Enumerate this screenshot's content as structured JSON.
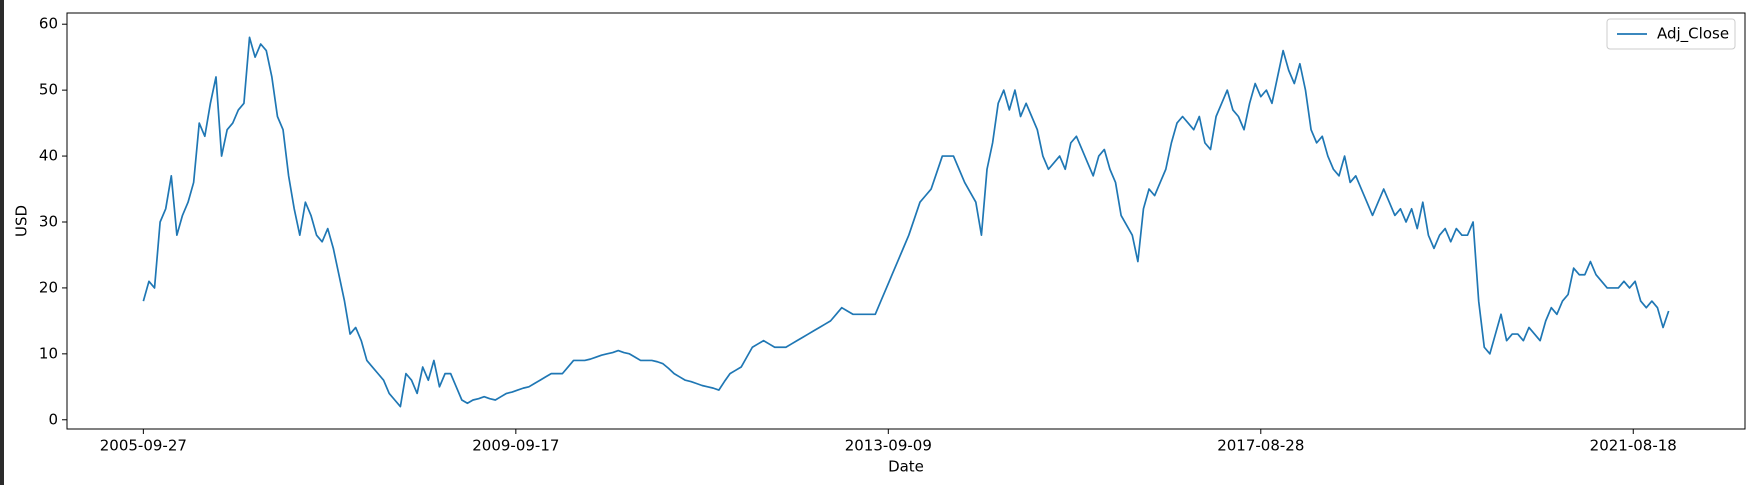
{
  "chart_data": {
    "type": "line",
    "xlabel": "Date",
    "ylabel": "USD",
    "legend": "upper right",
    "xlim": [
      -205,
      4300
    ],
    "ylim": [
      -1.4,
      61.7
    ],
    "xticks": [
      {
        "value": 0,
        "label": "2005-09-27"
      },
      {
        "value": 1000,
        "label": "2009-09-17"
      },
      {
        "value": 2000,
        "label": "2013-09-09"
      },
      {
        "value": 3000,
        "label": "2017-08-28"
      },
      {
        "value": 4000,
        "label": "2021-08-18"
      }
    ],
    "yticks": [
      0,
      10,
      20,
      30,
      40,
      50,
      60
    ],
    "x": [
      0,
      15,
      30,
      45,
      60,
      75,
      90,
      105,
      120,
      135,
      150,
      165,
      180,
      195,
      210,
      225,
      240,
      255,
      270,
      285,
      300,
      315,
      330,
      345,
      360,
      375,
      390,
      405,
      420,
      435,
      450,
      465,
      480,
      495,
      510,
      525,
      540,
      555,
      570,
      585,
      600,
      615,
      630,
      645,
      660,
      675,
      690,
      705,
      720,
      735,
      750,
      765,
      780,
      795,
      810,
      825,
      840,
      855,
      870,
      885,
      900,
      915,
      930,
      945,
      960,
      975,
      990,
      1005,
      1020,
      1035,
      1050,
      1065,
      1080,
      1095,
      1110,
      1125,
      1140,
      1155,
      1170,
      1185,
      1200,
      1215,
      1230,
      1245,
      1260,
      1275,
      1290,
      1305,
      1320,
      1335,
      1350,
      1365,
      1380,
      1395,
      1410,
      1425,
      1440,
      1455,
      1470,
      1485,
      1500,
      1515,
      1530,
      1545,
      1560,
      1575,
      1590,
      1605,
      1620,
      1635,
      1650,
      1665,
      1680,
      1695,
      1710,
      1725,
      1740,
      1755,
      1770,
      1785,
      1800,
      1815,
      1830,
      1845,
      1860,
      1875,
      1890,
      1905,
      1920,
      1935,
      1950,
      1965,
      1980,
      1995,
      2010,
      2025,
      2040,
      2055,
      2070,
      2085,
      2100,
      2115,
      2130,
      2145,
      2160,
      2175,
      2190,
      2205,
      2220,
      2235,
      2250,
      2265,
      2280,
      2295,
      2310,
      2325,
      2340,
      2355,
      2370,
      2385,
      2400,
      2415,
      2430,
      2445,
      2460,
      2475,
      2490,
      2505,
      2520,
      2535,
      2550,
      2565,
      2580,
      2595,
      2610,
      2625,
      2640,
      2655,
      2670,
      2685,
      2700,
      2715,
      2730,
      2745,
      2760,
      2775,
      2790,
      2805,
      2820,
      2835,
      2850,
      2865,
      2880,
      2895,
      2910,
      2925,
      2940,
      2955,
      2970,
      2985,
      3000,
      3015,
      3030,
      3045,
      3060,
      3075,
      3090,
      3105,
      3120,
      3135,
      3150,
      3165,
      3180,
      3195,
      3210,
      3225,
      3240,
      3255,
      3270,
      3285,
      3300,
      3315,
      3330,
      3345,
      3360,
      3375,
      3390,
      3405,
      3420,
      3435,
      3450,
      3465,
      3480,
      3495,
      3510,
      3525,
      3540,
      3555,
      3570,
      3585,
      3600,
      3615,
      3630,
      3645,
      3660,
      3675,
      3690,
      3705,
      3720,
      3735,
      3750,
      3765,
      3780,
      3795,
      3810,
      3825,
      3840,
      3855,
      3870,
      3885,
      3900,
      3915,
      3930,
      3945,
      3960,
      3975,
      3990,
      4005,
      4020,
      4035,
      4050,
      4065,
      4080,
      4095
    ],
    "series": [
      {
        "name": "Adj_Close",
        "color": "#1f77b4",
        "values": [
          18,
          21,
          20,
          30,
          32,
          37,
          28,
          31,
          33,
          36,
          45,
          43,
          48,
          52,
          40,
          44,
          45,
          47,
          48,
          58,
          55,
          57,
          56,
          52,
          46,
          44,
          37,
          32,
          28,
          33,
          31,
          28,
          27,
          29,
          26,
          22,
          18,
          13,
          14,
          12,
          9,
          8,
          7,
          6,
          4,
          3,
          2,
          7,
          6,
          4,
          8,
          6,
          9,
          5,
          7,
          7,
          5,
          3,
          2.5,
          3,
          3.2,
          3.5,
          3.2,
          3,
          3.5,
          4,
          4.2,
          4.5,
          4.8,
          5,
          5.5,
          6,
          6.5,
          7,
          7,
          7,
          8,
          9,
          9,
          9,
          9.2,
          9.5,
          9.8,
          10,
          10.2,
          10.5,
          10.2,
          10,
          9.5,
          9,
          9,
          9,
          8.8,
          8.5,
          7.8,
          7,
          6.5,
          6,
          5.8,
          5.5,
          5.2,
          5,
          4.8,
          4.5,
          5.8,
          7,
          7.5,
          8,
          9.5,
          11,
          11.5,
          12,
          11.5,
          11,
          11,
          11,
          11.5,
          12,
          12.5,
          13,
          13.5,
          14,
          14.5,
          15,
          16,
          17,
          16.5,
          16,
          16,
          16,
          16,
          16,
          18,
          20,
          22,
          24,
          26,
          28,
          30.5,
          33,
          34,
          35,
          37.5,
          40,
          40,
          40,
          38,
          36,
          34.5,
          33,
          28,
          38,
          42,
          48,
          50,
          47,
          50,
          46,
          48,
          46,
          44,
          40,
          38,
          39,
          40,
          38,
          42,
          43,
          41,
          39,
          37,
          40,
          41,
          38,
          36,
          31,
          29.5,
          28,
          24,
          32,
          35,
          34,
          36,
          38,
          42,
          45,
          46,
          45,
          44,
          46,
          42,
          41,
          46,
          48,
          50,
          47,
          46,
          44,
          48,
          51,
          49,
          50,
          48,
          52,
          56,
          53,
          51,
          54,
          50,
          44,
          42,
          43,
          40,
          38,
          37,
          40,
          36,
          37,
          35,
          33,
          31,
          33,
          35,
          33,
          31,
          32,
          30,
          32,
          29,
          33,
          28,
          26,
          28,
          29,
          27,
          29,
          28,
          28,
          30,
          18,
          11,
          10,
          13,
          16,
          12,
          13,
          13,
          12,
          14,
          13,
          12,
          15,
          17,
          16,
          18,
          19,
          23,
          22,
          22,
          24,
          22,
          21,
          20,
          20,
          20,
          21,
          20,
          21,
          18,
          17,
          18,
          17,
          14,
          16.5
        ]
      }
    ]
  }
}
